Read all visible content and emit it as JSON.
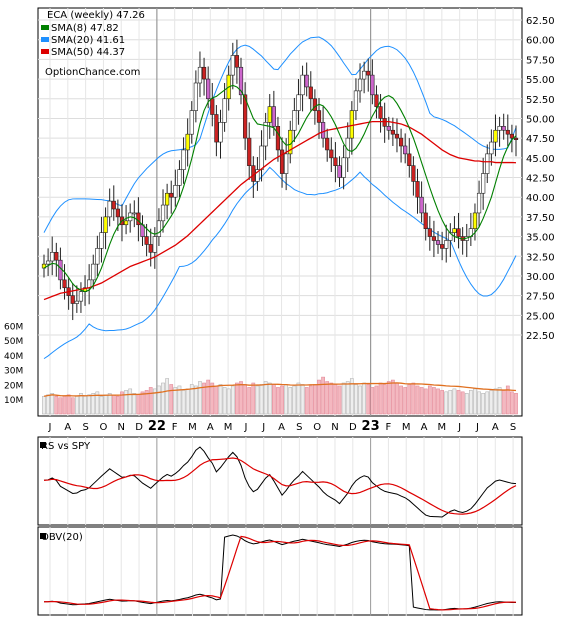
{
  "chart_data": [
    {
      "panel": "price",
      "type": "candlestick",
      "title": "ECA (weekly) 47.26",
      "watermark": "OptionChance.com",
      "legend": [
        {
          "label": "SMA(8) 47.82",
          "color": "#008000"
        },
        {
          "label": "SMA(20) 41.61",
          "color": "#1e90ff"
        },
        {
          "label": "SMA(50) 44.37",
          "color": "#dd0000"
        }
      ],
      "legend_position": "top-left",
      "grid": true,
      "ylim": [
        22.5,
        62.5
      ],
      "y_ticks": [
        "62.50",
        "60.00",
        "57.50",
        "55.00",
        "52.50",
        "50.00",
        "47.50",
        "45.00",
        "42.50",
        "40.00",
        "37.50",
        "35.00",
        "32.50",
        "30.00",
        "27.50",
        "25.00",
        "22.50"
      ],
      "x_labels": [
        "J",
        "A",
        "S",
        "O",
        "N",
        "D",
        "22",
        "F",
        "M",
        "A",
        "M",
        "J",
        "J",
        "A",
        "S",
        "O",
        "N",
        "D",
        "23",
        "F",
        "M",
        "A",
        "M",
        "J",
        "J",
        "A",
        "S"
      ],
      "close": [
        31.5,
        31.9,
        33.0,
        32.0,
        29.5,
        28.5,
        27.5,
        26.5,
        26.8,
        28.0,
        28.5,
        29.5,
        31.5,
        33.5,
        35.5,
        37.5,
        39.5,
        38.5,
        37.5,
        36.5,
        37.0,
        38.0,
        38.0,
        36.5,
        35.0,
        34.0,
        33.0,
        35.0,
        37.0,
        39.0,
        40.5,
        40.0,
        41.5,
        43.5,
        46.0,
        48.0,
        51.0,
        54.5,
        56.5,
        55.0,
        52.5,
        50.5,
        47.0,
        49.5,
        52.5,
        55.5,
        58.0,
        56.5,
        53.0,
        47.5,
        44.0,
        42.0,
        43.5,
        46.5,
        49.5,
        51.5,
        49.0,
        46.0,
        43.0,
        45.5,
        48.5,
        51.0,
        53.0,
        55.5,
        54.0,
        52.5,
        51.0,
        49.5,
        47.5,
        46.0,
        45.0,
        44.0,
        42.5,
        45.0,
        47.5,
        51.0,
        53.5,
        55.0,
        56.0,
        55.5,
        53.0,
        51.5,
        50.0,
        49.0,
        48.5,
        48.0,
        47.5,
        46.5,
        45.5,
        44.0,
        42.0,
        40.0,
        38.0,
        36.0,
        35.0,
        34.5,
        34.0,
        33.5,
        34.5,
        35.5,
        36.0,
        35.0,
        34.5,
        35.0,
        36.0,
        38.0,
        40.5,
        43.0,
        45.5,
        47.0,
        48.5,
        49.0,
        48.5,
        48.0,
        47.5,
        47.3
      ],
      "sma8": [
        31.0,
        31.3,
        31.6,
        31.5,
        31.0,
        30.5,
        29.8,
        29.0,
        28.5,
        28.2,
        28.0,
        28.2,
        28.8,
        29.8,
        31.0,
        32.5,
        34.0,
        35.3,
        36.3,
        37.0,
        37.3,
        37.5,
        37.4,
        37.0,
        36.5,
        36.0,
        35.5,
        35.3,
        35.5,
        36.0,
        36.8,
        37.6,
        38.5,
        39.8,
        41.3,
        43.0,
        44.9,
        47.0,
        49.3,
        51.0,
        52.1,
        52.6,
        52.8,
        53.2,
        53.6,
        54.0,
        54.2,
        54.0,
        53.5,
        52.6,
        51.3,
        50.0,
        49.3,
        49.2,
        49.1,
        49.0,
        48.8,
        48.1,
        47.2,
        46.6,
        46.7,
        47.3,
        48.1,
        49.1,
        50.1,
        50.9,
        51.5,
        51.8,
        51.6,
        51.0,
        50.2,
        49.2,
        48.0,
        46.8,
        46.0,
        45.8,
        46.2,
        47.0,
        48.0,
        49.2,
        50.3,
        51.2,
        52.2,
        52.7,
        52.9,
        52.6,
        51.9,
        51.0,
        50.0,
        48.8,
        47.5,
        46.0,
        44.4,
        42.8,
        41.2,
        39.7,
        38.3,
        37.1,
        36.1,
        35.4,
        35.0,
        34.8,
        34.7,
        34.8,
        35.0,
        35.5,
        36.2,
        37.3,
        38.6,
        40.0,
        41.8,
        43.6,
        45.2,
        46.4,
        47.3,
        47.8
      ],
      "sma20": [
        29.5,
        29.8,
        30.1,
        30.3,
        30.4,
        30.4,
        30.3,
        30.1,
        29.9,
        29.8,
        29.8,
        29.9,
        30.1,
        30.4,
        30.8,
        31.2,
        31.7,
        32.1,
        32.5,
        32.8,
        33.1,
        33.4,
        33.7,
        33.9,
        34.0,
        34.2,
        34.4,
        34.7,
        35.1,
        35.5,
        35.9,
        36.3,
        36.7,
        37.2,
        37.8,
        38.5,
        39.3,
        40.2,
        41.2,
        42.2,
        43.2,
        44.2,
        45.0,
        45.8,
        46.6,
        47.4,
        48.2,
        48.8,
        49.2,
        49.5,
        49.6,
        49.6,
        49.6,
        49.7,
        49.7,
        49.8,
        49.9,
        49.9,
        49.9,
        49.9,
        50.0,
        50.0,
        50.1,
        50.2,
        50.2,
        50.3,
        50.3,
        50.4,
        50.3,
        50.2,
        50.1,
        49.9,
        49.7,
        49.5,
        49.4,
        49.3,
        49.2,
        49.2,
        49.2,
        49.3,
        49.3,
        49.4,
        49.4,
        49.3,
        49.2,
        49.0,
        48.8,
        48.5,
        48.2,
        47.8,
        47.3,
        46.7,
        46.0,
        45.3,
        44.5,
        43.7,
        42.9,
        42.1,
        41.3,
        40.5,
        39.8,
        39.1,
        38.5,
        38.0,
        37.6,
        37.3,
        37.1,
        37.1,
        37.3,
        37.6,
        38.1,
        38.7,
        39.4,
        40.2,
        40.9,
        41.6
      ],
      "sma50": [
        27.0,
        27.2,
        27.4,
        27.6,
        27.8,
        27.9,
        28.0,
        28.1,
        28.2,
        28.3,
        28.4,
        28.5,
        28.7,
        28.9,
        29.1,
        29.4,
        29.7,
        30.0,
        30.3,
        30.6,
        30.9,
        31.2,
        31.4,
        31.6,
        31.8,
        32.0,
        32.2,
        32.4,
        32.7,
        33.0,
        33.3,
        33.6,
        33.9,
        34.3,
        34.7,
        35.1,
        35.6,
        36.1,
        36.6,
        37.1,
        37.6,
        38.1,
        38.6,
        39.1,
        39.6,
        40.1,
        40.6,
        41.1,
        41.6,
        42.0,
        42.4,
        42.8,
        43.2,
        43.6,
        44.0,
        44.4,
        44.8,
        45.1,
        45.4,
        45.7,
        46.0,
        46.3,
        46.6,
        46.9,
        47.2,
        47.5,
        47.8,
        48.1,
        48.3,
        48.5,
        48.6,
        48.7,
        48.8,
        48.9,
        49.0,
        49.1,
        49.2,
        49.3,
        49.4,
        49.5,
        49.6,
        49.6,
        49.6,
        49.6,
        49.6,
        49.5,
        49.4,
        49.3,
        49.1,
        48.9,
        48.6,
        48.3,
        48.0,
        47.6,
        47.2,
        46.8,
        46.4,
        46.0,
        45.7,
        45.4,
        45.2,
        45.0,
        44.9,
        44.8,
        44.7,
        44.6,
        44.6,
        44.5,
        44.5,
        44.5,
        44.4,
        44.4,
        44.4,
        44.4,
        44.4,
        44.37
      ]
    },
    {
      "panel": "volume",
      "type": "bar",
      "y_ticks": [
        "60M",
        "50M",
        "40M",
        "30M",
        "20M",
        "10M"
      ],
      "ylim": [
        0,
        65
      ],
      "values": [
        12,
        13,
        14,
        12,
        11,
        12,
        13,
        11,
        12,
        14,
        12,
        13,
        14,
        15,
        12,
        13,
        14,
        13,
        12,
        15,
        16,
        17,
        14,
        13,
        15,
        16,
        18,
        17,
        19,
        21,
        24,
        20,
        18,
        19,
        16,
        17,
        20,
        19,
        22,
        21,
        23,
        21,
        19,
        20,
        18,
        17,
        19,
        21,
        22,
        20,
        18,
        21,
        19,
        20,
        22,
        21,
        20,
        18,
        19,
        20,
        18,
        19,
        21,
        20,
        18,
        19,
        20,
        23,
        25,
        22,
        21,
        20,
        19,
        21,
        22,
        24,
        20,
        19,
        21,
        20,
        18,
        19,
        21,
        20,
        22,
        23,
        21,
        19,
        18,
        20,
        21,
        19,
        18,
        17,
        19,
        18,
        17,
        16,
        15,
        16,
        17,
        16,
        15,
        14,
        16,
        17,
        15,
        14,
        15,
        16,
        17,
        18,
        16,
        19,
        15,
        14
      ]
    }
  ]
}
